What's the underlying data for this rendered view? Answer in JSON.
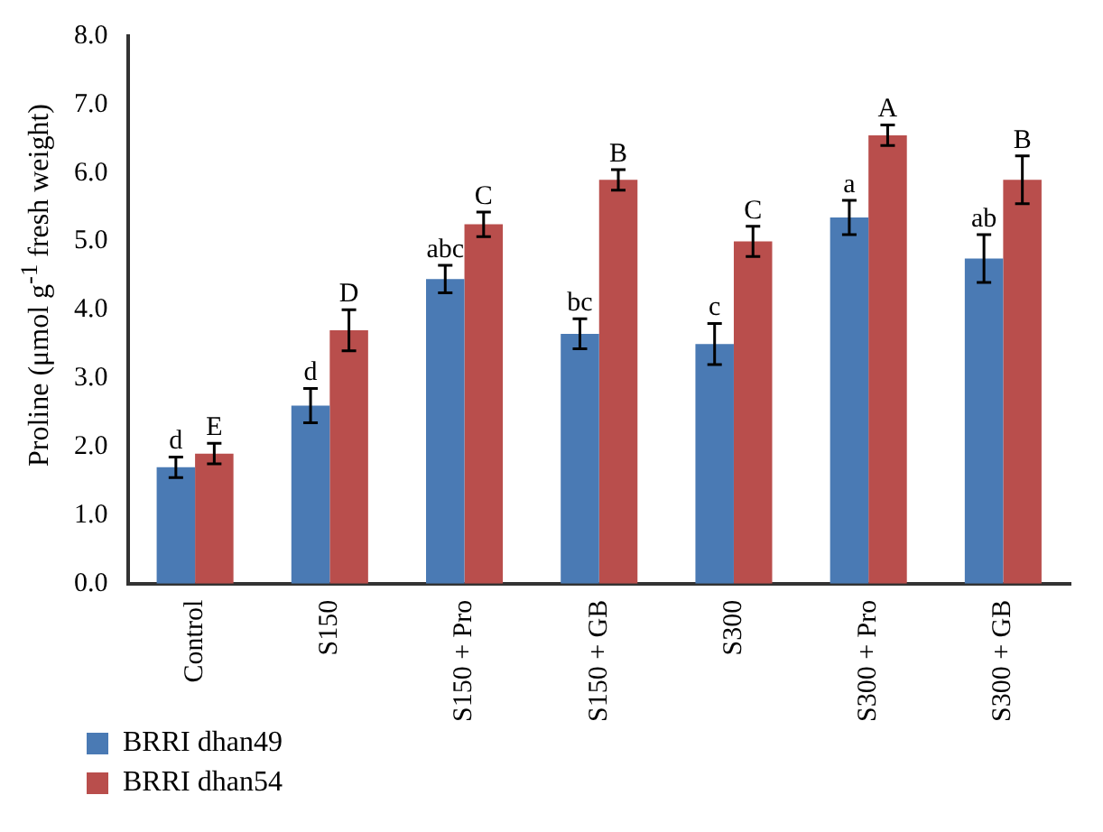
{
  "chart_data": {
    "type": "bar",
    "ylabel": "Proline (μmol g$^{-1}$ fresh weight)",
    "categories": [
      "Control",
      "S150",
      "S150 + Pro",
      "S150 + GB",
      "S300",
      "S300 + Pro",
      "S300 + GB"
    ],
    "series": [
      {
        "name": "BRRI dhan49",
        "color": "#4a7ab4",
        "values": [
          1.7,
          2.6,
          4.45,
          3.65,
          3.5,
          5.35,
          4.75
        ],
        "errors": [
          0.15,
          0.25,
          0.2,
          0.22,
          0.3,
          0.25,
          0.35
        ],
        "value_labels": [
          "d",
          "d",
          "abc",
          "bc",
          "c",
          "a",
          "ab"
        ]
      },
      {
        "name": "BRRI dhan54",
        "color": "#b94e4c",
        "values": [
          1.9,
          3.7,
          5.25,
          5.9,
          5.0,
          6.55,
          5.9
        ],
        "errors": [
          0.15,
          0.3,
          0.18,
          0.15,
          0.22,
          0.15,
          0.35
        ],
        "value_labels": [
          "E",
          "D",
          "C",
          "B",
          "C",
          "A",
          "B"
        ]
      }
    ],
    "ylim": [
      0,
      8
    ],
    "yticks": [
      {
        "value": 0,
        "label": "0.0"
      },
      {
        "value": 1,
        "label": "1.0"
      },
      {
        "value": 2,
        "label": "2.0"
      },
      {
        "value": 3,
        "label": "3.0"
      },
      {
        "value": 4,
        "label": "4.0"
      },
      {
        "value": 5,
        "label": "5.0"
      },
      {
        "value": 6,
        "label": "6.0"
      },
      {
        "value": 7,
        "label": "7.0"
      },
      {
        "value": 8,
        "label": "8.0"
      }
    ],
    "legend": "bottom left",
    "grid": false
  }
}
